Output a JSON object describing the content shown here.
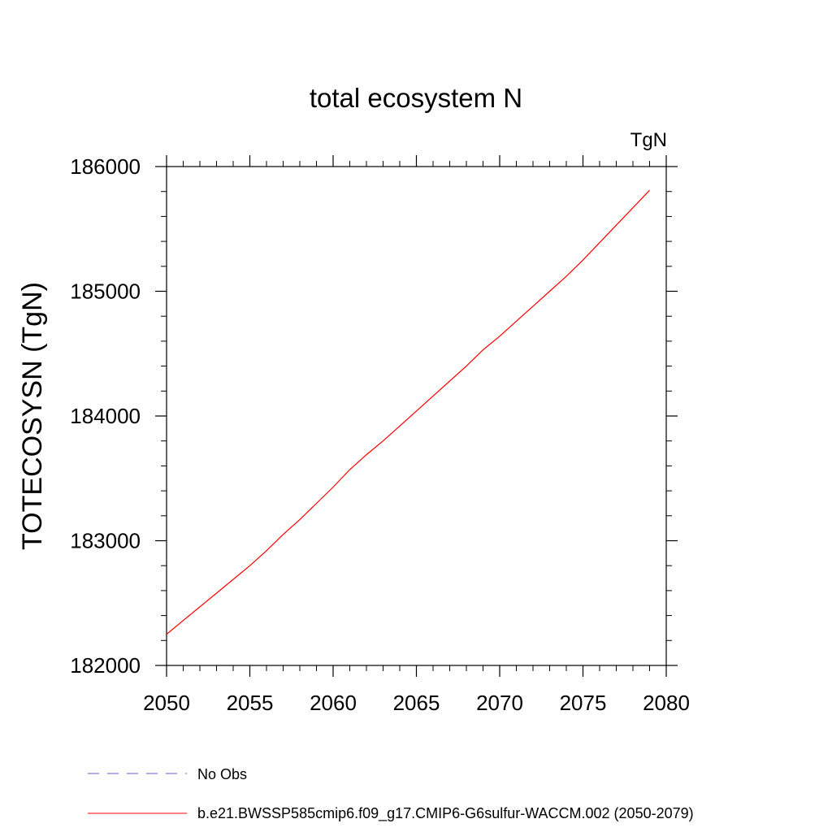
{
  "chart_data": {
    "type": "line",
    "title": "total ecosystem N",
    "units_label": "TgN",
    "ylabel": "TOTECOSYSN  (TgN)",
    "xlabel": "",
    "xlim": [
      2050,
      2080
    ],
    "ylim": [
      182000,
      186000
    ],
    "x_ticks": [
      2050,
      2055,
      2060,
      2065,
      2070,
      2075,
      2080
    ],
    "y_ticks": [
      182000,
      183000,
      184000,
      185000,
      186000
    ],
    "series": [
      {
        "name": "b.e21.BWSSP585cmip6.f09_g17.CMIP6-G6sulfur-WACCM.002 (2050-2079)",
        "color": "#ff0000",
        "x": [
          2050,
          2051,
          2052,
          2053,
          2054,
          2055,
          2056,
          2057,
          2058,
          2059,
          2060,
          2061,
          2062,
          2063,
          2064,
          2065,
          2066,
          2067,
          2068,
          2069,
          2070,
          2071,
          2072,
          2073,
          2074,
          2075,
          2076,
          2077,
          2078,
          2079
        ],
        "y": [
          182250,
          182360,
          182470,
          182580,
          182690,
          182800,
          182920,
          183050,
          183170,
          183300,
          183430,
          183570,
          183690,
          183800,
          183920,
          184040,
          184160,
          184280,
          184400,
          184530,
          184640,
          184760,
          184880,
          185000,
          185120,
          185250,
          185390,
          185530,
          185670,
          185810
        ]
      }
    ],
    "legend": {
      "placement": "bottom",
      "entries": [
        {
          "label": "No Obs",
          "color": "#6a5acd",
          "style": "dashed"
        },
        {
          "label": "b.e21.BWSSP585cmip6.f09_g17.CMIP6-G6sulfur-WACCM.002 (2050-2079)",
          "color": "#ff0000",
          "style": "solid"
        }
      ]
    }
  }
}
